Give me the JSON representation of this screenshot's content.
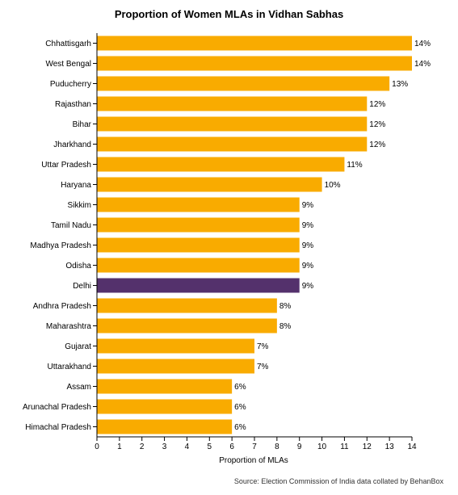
{
  "chart_data": {
    "type": "bar",
    "orientation": "horizontal",
    "title": "Proportion of Women MLAs in Vidhan Sabhas",
    "xlabel": "Proportion of MLAs",
    "ylabel": "",
    "xlim": [
      0,
      14
    ],
    "xticks": [
      0,
      1,
      2,
      3,
      4,
      5,
      6,
      7,
      8,
      9,
      10,
      11,
      12,
      13,
      14
    ],
    "grid": false,
    "categories": [
      "Chhattisgarh",
      "West Bengal",
      "Puducherry",
      "Rajasthan",
      "Bihar",
      "Jharkhand",
      "Uttar Pradesh",
      "Haryana",
      "Sikkim",
      "Tamil Nadu",
      "Madhya Pradesh",
      "Odisha",
      "Delhi",
      "Andhra Pradesh",
      "Maharashtra",
      "Gujarat",
      "Uttarakhand",
      "Assam",
      "Arunachal Pradesh",
      "Himachal Pradesh"
    ],
    "values": [
      14,
      14,
      13,
      12,
      12,
      12,
      11,
      10,
      9,
      9,
      9,
      9,
      9,
      8,
      8,
      7,
      7,
      6,
      6,
      6
    ],
    "value_labels": [
      "14%",
      "14%",
      "13%",
      "12%",
      "12%",
      "12%",
      "11%",
      "10%",
      "9%",
      "9%",
      "9%",
      "9%",
      "9%",
      "8%",
      "8%",
      "7%",
      "7%",
      "6%",
      "6%",
      "6%"
    ],
    "highlight_category": "Delhi",
    "colors": {
      "default": "#f9ab00",
      "highlight": "#54316c"
    },
    "source": "Source: Election Commission of India data collated by BehanBox"
  }
}
